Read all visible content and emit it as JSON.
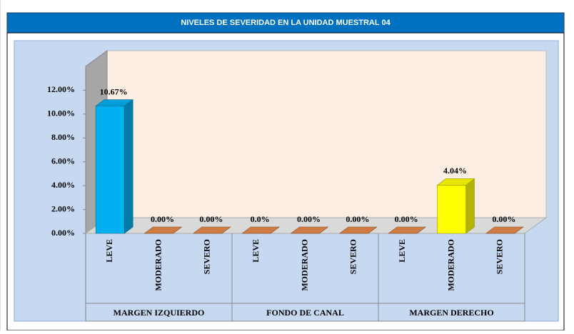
{
  "chart_data": {
    "type": "bar3d",
    "title": "NIVELES DE SEVERIDAD EN LA UNIDAD MUESTRAL 04",
    "categories": [
      "LEVE",
      "MODERADO",
      "SEVERO",
      "LEVE",
      "MODERADO",
      "SEVERO",
      "LEVE",
      "MODERADO",
      "SEVERO"
    ],
    "groups": [
      "MARGEN IZQUIERDO",
      "FONDO DE CANAL",
      "MARGEN DERECHO"
    ],
    "values": [
      10.67,
      0,
      0,
      0,
      0,
      0,
      0,
      4.04,
      0
    ],
    "value_labels": [
      "10.67%",
      "0.00%",
      "0.00%",
      "0.0%",
      "0.00%",
      "0.00%",
      "0.00%",
      "4.04%",
      "0.00%"
    ],
    "colors": [
      "#00b0f0",
      "#e58a4a",
      "#e58a4a",
      "#e58a4a",
      "#e58a4a",
      "#e58a4a",
      "#e58a4a",
      "#ffff00",
      "#e58a4a"
    ],
    "ylim": [
      0,
      14
    ],
    "yticks": [
      {
        "value": 0,
        "label": "0.00%"
      },
      {
        "value": 2,
        "label": "2.00%"
      },
      {
        "value": 4,
        "label": "4.00%"
      },
      {
        "value": 6,
        "label": "6.00%"
      },
      {
        "value": 8,
        "label": "8.00%"
      },
      {
        "value": 10,
        "label": "10.00%"
      },
      {
        "value": 12,
        "label": "12.00%"
      }
    ]
  }
}
